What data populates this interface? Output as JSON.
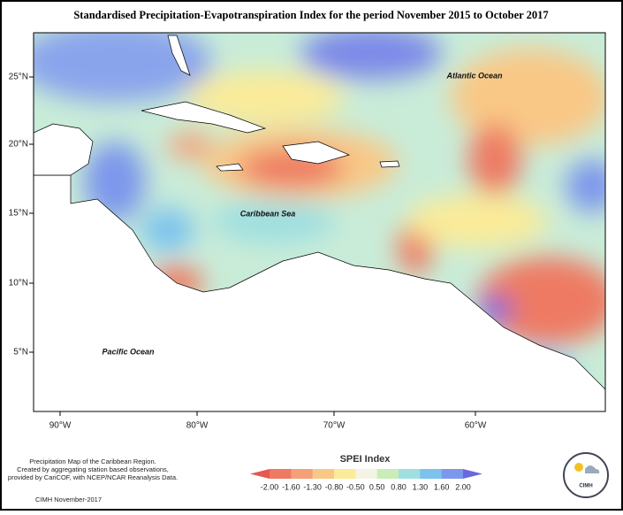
{
  "header": {
    "title": "Standardised Precipitation-Evapotranspiration Index for the period November 2015 to October 2017"
  },
  "map": {
    "labels": [
      "Atlantic Ocean",
      "Caribbean Sea",
      "Pacific Ocean"
    ],
    "lat_labels": [
      "25°N",
      "20°N",
      "15°N",
      "10°N",
      "5°N"
    ],
    "lon_labels": [
      "90°W",
      "80°W",
      "70°W",
      "60°W"
    ]
  },
  "footer": {
    "description": [
      "Precipitation Map of the Caribbean Region.",
      "Created by aggregating station based observations,",
      "provided by CariCOF, with NCEP/NCAR Reanalysis Data."
    ],
    "credit": "CIMH November-2017",
    "logo": "CIMH"
  },
  "legend": {
    "title": "SPEI Index",
    "ticks": [
      {
        "value": -2,
        "label": "-2.00"
      },
      {
        "value": -1.6,
        "label": "-1.60"
      },
      {
        "value": -1.3,
        "label": "-1.30"
      },
      {
        "value": -0.8,
        "label": "-0.80"
      },
      {
        "value": -0.5,
        "label": "-0.50"
      },
      {
        "value": 0.5,
        "label": "0.50"
      },
      {
        "value": 0.8,
        "label": "0.80"
      },
      {
        "value": 1.3,
        "label": "1.30"
      },
      {
        "value": 1.6,
        "label": "1.60"
      },
      {
        "value": 2,
        "label": "2.00"
      }
    ],
    "colors": [
      "#e8574f",
      "#ee7a63",
      "#f5a077",
      "#f9c886",
      "#fbeb98",
      "#f4f4e4",
      "#c9ecb9",
      "#9fdfe0",
      "#7bc3ee",
      "#7d97ec",
      "#6a68de"
    ]
  }
}
